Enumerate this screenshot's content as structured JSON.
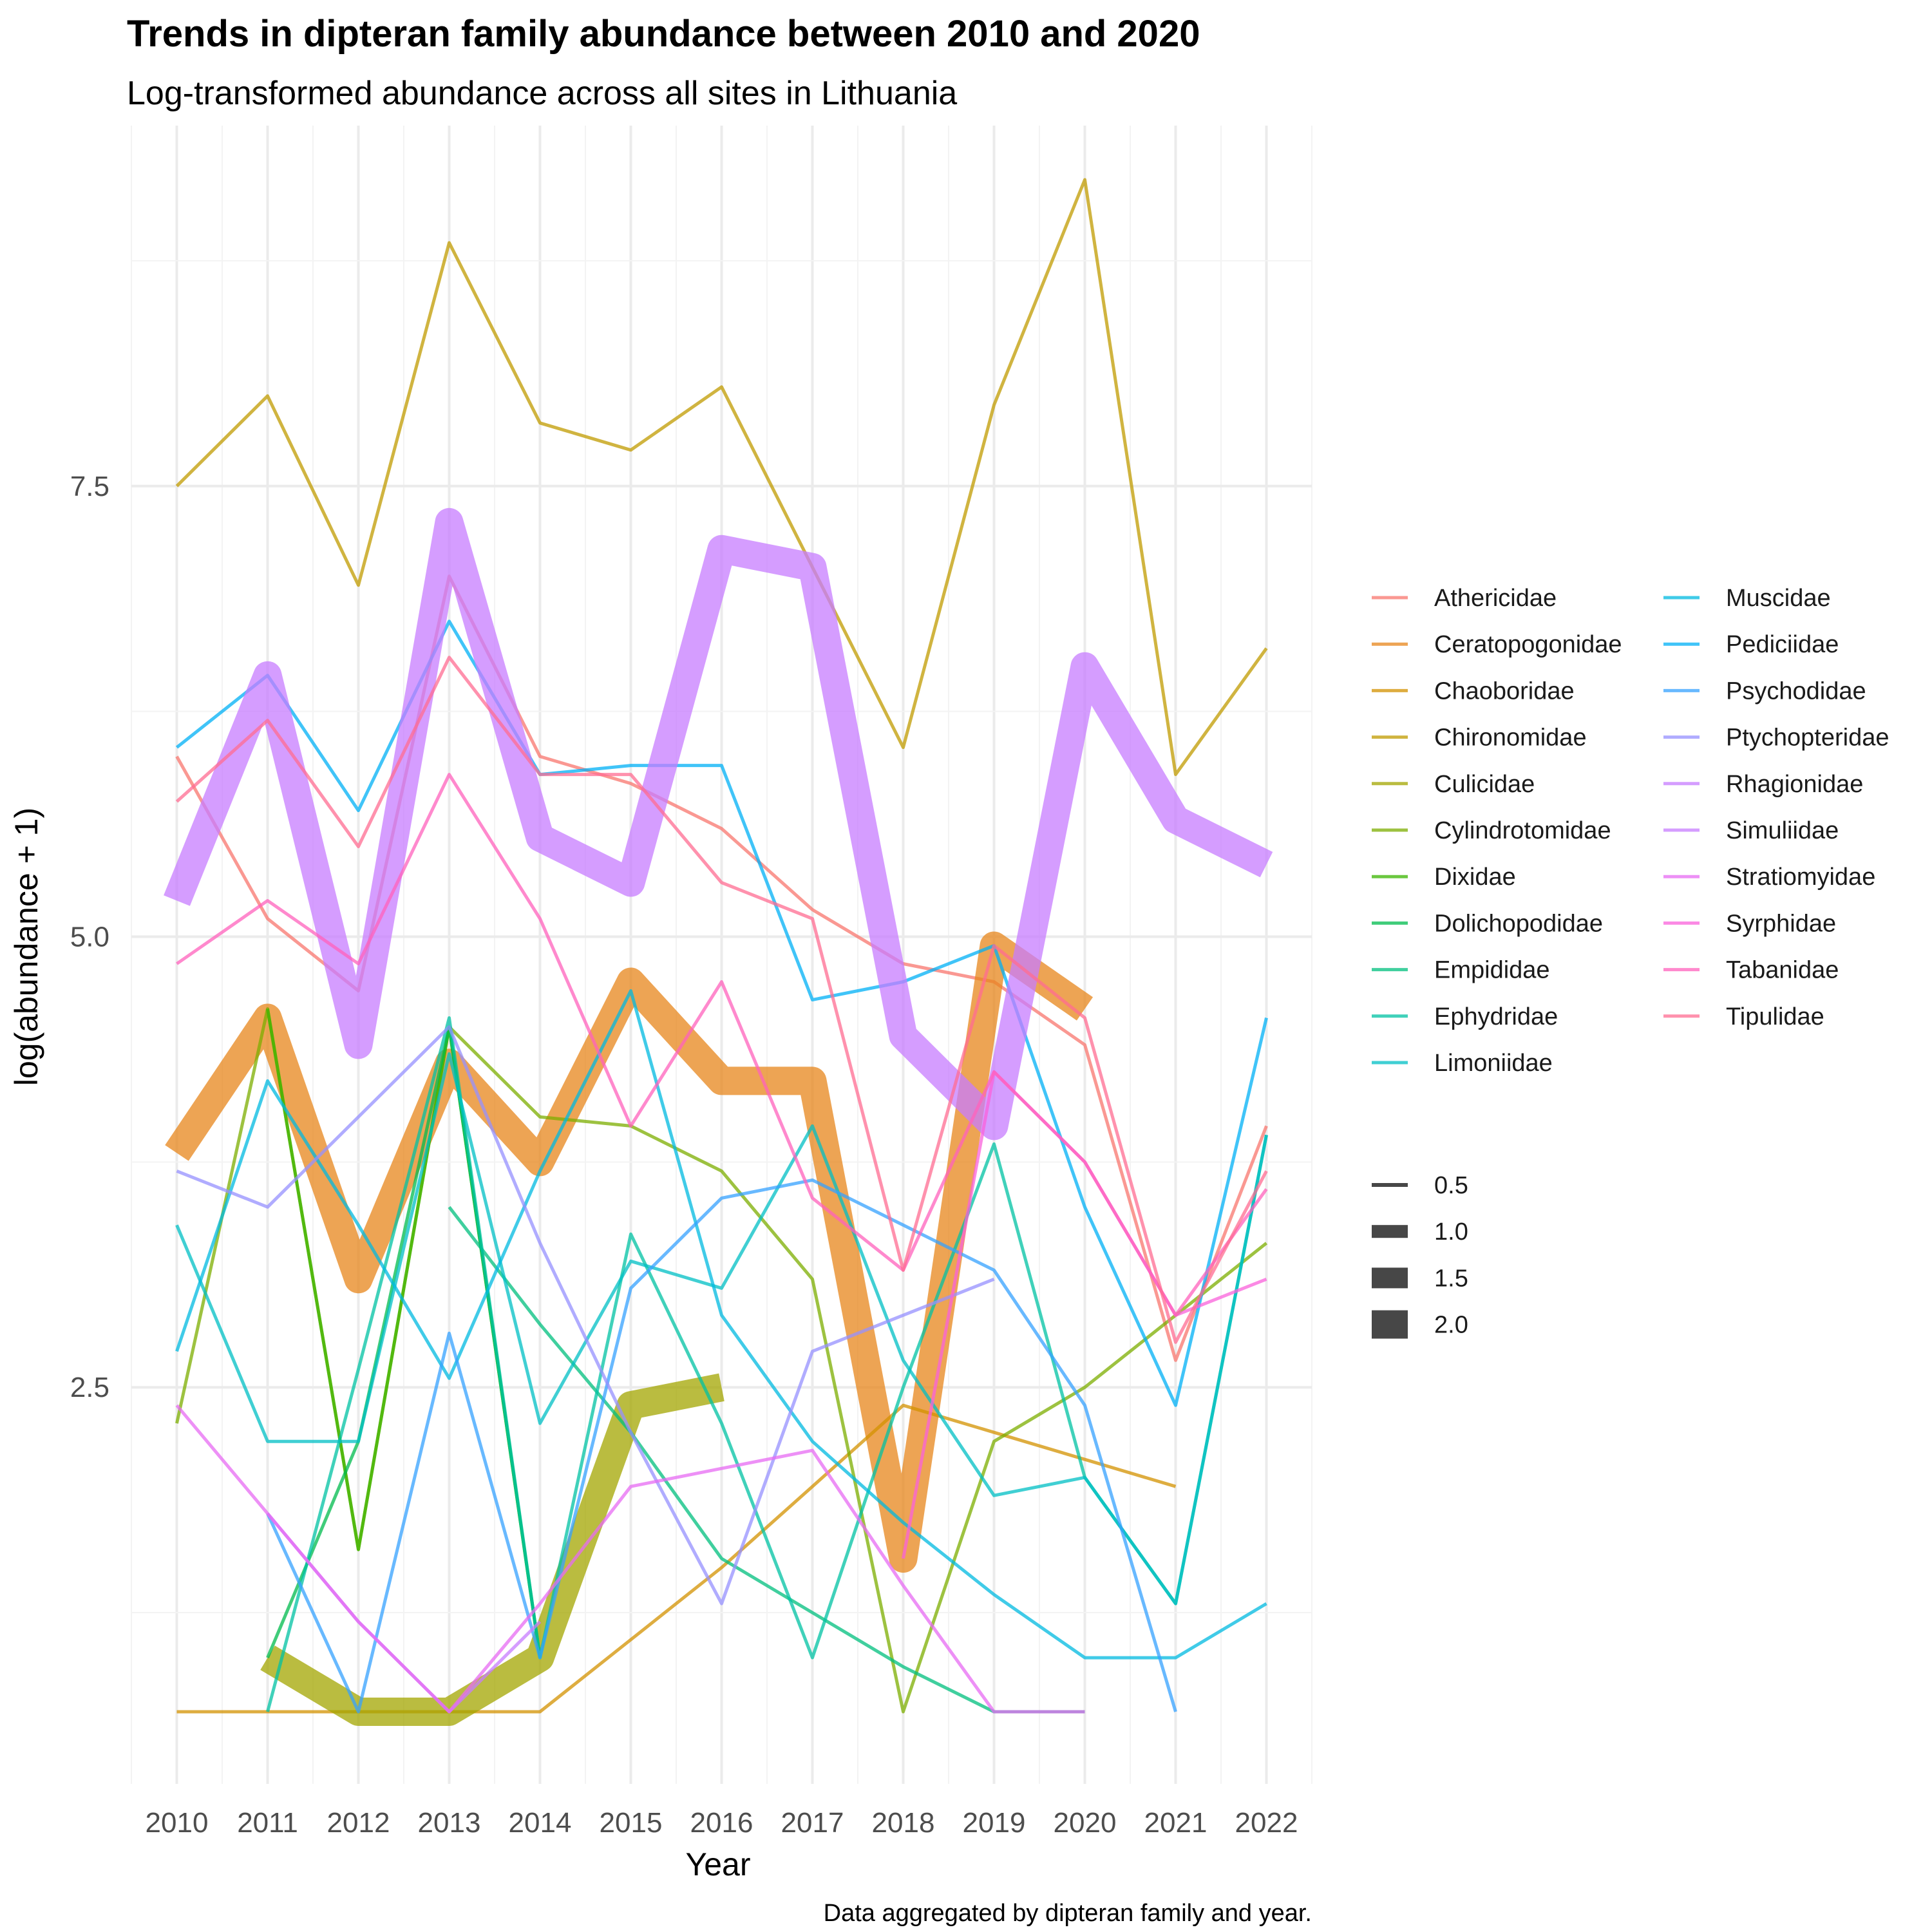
{
  "chart_data": {
    "type": "line",
    "title": "Trends in dipteran family abundance between 2010 and 2020",
    "subtitle": "Log-transformed abundance across all sites in Lithuania",
    "xlabel": "Year",
    "ylabel": "log(abundance + 1)",
    "caption": "Data aggregated by dipteran family and year.",
    "x_ticks": [
      "2010",
      "2011",
      "2012",
      "2013",
      "2014",
      "2015",
      "2016",
      "2017",
      "2018",
      "2019",
      "2020",
      "2021",
      "2022"
    ],
    "y_ticks": [
      "2.5",
      "5.0",
      "7.5"
    ],
    "xlim": [
      2009.5,
      2022.5
    ],
    "ylim": [
      0.3,
      9.5
    ],
    "grid": true,
    "legend_position": "right",
    "size_legend": [
      "0.5",
      "1.0",
      "1.5",
      "2.0"
    ],
    "series": [
      {
        "name": "Athericidae",
        "color": "#F8766D",
        "size": 0.5,
        "x": [
          2010,
          2011,
          2012,
          2013,
          2014,
          2015,
          2016,
          2017,
          2018,
          2019,
          2020,
          2021,
          2022
        ],
        "y": [
          6.0,
          5.1,
          4.7,
          7.0,
          6.0,
          5.85,
          5.6,
          5.15,
          4.85,
          4.75,
          4.4,
          2.65,
          3.95
        ]
      },
      {
        "name": "Ceratopogonidae",
        "color": "#E7861B",
        "size": 2.0,
        "x": [
          2010,
          2011,
          2012,
          2013,
          2014,
          2015,
          2016,
          2017,
          2018,
          2019,
          2020
        ],
        "y": [
          3.8,
          4.55,
          3.1,
          4.3,
          3.75,
          4.75,
          4.2,
          4.2,
          1.55,
          4.95,
          4.6
        ]
      },
      {
        "name": "Chaoboridae",
        "color": "#D39200",
        "size": 0.5,
        "x": [
          2010,
          2011,
          2012,
          2013,
          2014,
          2015,
          2016,
          2017,
          2018,
          2019,
          2020,
          2021
        ],
        "y": [
          0.7,
          0.7,
          0.7,
          0.7,
          0.7,
          1.1,
          1.5,
          1.95,
          2.4,
          2.25,
          2.1,
          1.95
        ]
      },
      {
        "name": "Chironomidae",
        "color": "#C09B00",
        "size": 0.5,
        "x": [
          2010,
          2011,
          2012,
          2013,
          2014,
          2015,
          2016,
          2017,
          2018,
          2019,
          2020,
          2021,
          2022
        ],
        "y": [
          7.5,
          8.0,
          6.95,
          8.85,
          7.85,
          7.7,
          8.05,
          7.05,
          6.05,
          7.95,
          9.2,
          5.9,
          6.6
        ]
      },
      {
        "name": "Culicidae",
        "color": "#A3A500",
        "size": 2.0,
        "x": [
          2011,
          2012,
          2013,
          2014,
          2015,
          2016
        ],
        "y": [
          1.0,
          0.7,
          0.7,
          1.0,
          2.4,
          2.5
        ]
      },
      {
        "name": "Cylindrotomidae",
        "color": "#7CAE00",
        "size": 0.5,
        "x": [
          2010,
          2011,
          2012,
          2013,
          2014,
          2015,
          2016,
          2017,
          2018,
          2019,
          2020,
          2021,
          2022
        ],
        "y": [
          2.3,
          4.6,
          1.6,
          4.5,
          4.0,
          3.95,
          3.7,
          3.1,
          0.7,
          2.2,
          2.5,
          2.9,
          3.3
        ]
      },
      {
        "name": "Dixidae",
        "color": "#39B600",
        "size": 0.5,
        "x": [
          2011,
          2012,
          2013,
          2014
        ],
        "y": [
          4.6,
          1.6,
          4.5,
          1.0
        ]
      },
      {
        "name": "Dolichopodidae",
        "color": "#00BB4E",
        "size": 0.5,
        "x": [
          2011,
          2012,
          2013,
          2014
        ],
        "y": [
          1.0,
          2.2,
          4.5,
          1.0
        ]
      },
      {
        "name": "Empididae",
        "color": "#00BF7D",
        "size": 0.5,
        "x": [
          2013,
          2014,
          2015,
          2016,
          2017,
          2018,
          2019,
          2020
        ],
        "y": [
          3.5,
          2.85,
          2.25,
          1.55,
          1.25,
          0.95,
          0.7,
          0.7
        ]
      },
      {
        "name": "Ephydridae",
        "color": "#00C1A3",
        "size": 0.5,
        "x": [
          2011,
          2012,
          2013,
          2014,
          2015,
          2016,
          2017,
          2018,
          2019,
          2020,
          2021,
          2022
        ],
        "y": [
          0.7,
          2.6,
          4.55,
          1.0,
          3.35,
          2.3,
          1.0,
          2.5,
          3.85,
          2.0,
          1.3,
          3.9
        ]
      },
      {
        "name": "Limoniidae",
        "color": "#00BFC4",
        "size": 0.5,
        "x": [
          2010,
          2011,
          2012,
          2013,
          2014,
          2015,
          2016,
          2017,
          2018,
          2019,
          2020,
          2021,
          2022
        ],
        "y": [
          3.4,
          2.2,
          2.2,
          4.35,
          2.3,
          3.2,
          3.05,
          3.95,
          2.65,
          1.9,
          2.0,
          1.3,
          3.9
        ]
      },
      {
        "name": "Muscidae",
        "color": "#00BAE0",
        "size": 0.5,
        "x": [
          2010,
          2011,
          2012,
          2013,
          2014,
          2015,
          2016,
          2017,
          2018,
          2019,
          2020,
          2021,
          2022
        ],
        "y": [
          2.7,
          4.2,
          3.4,
          2.55,
          3.7,
          4.7,
          2.9,
          2.2,
          1.75,
          1.35,
          1.0,
          1.0,
          1.3
        ]
      },
      {
        "name": "Pediciidae",
        "color": "#00B0F6",
        "size": 0.5,
        "x": [
          2010,
          2011,
          2012,
          2013,
          2014,
          2015,
          2016,
          2017,
          2018,
          2019,
          2020,
          2021,
          2022
        ],
        "y": [
          6.05,
          6.45,
          5.7,
          6.75,
          5.9,
          5.95,
          5.95,
          4.65,
          4.75,
          4.95,
          3.5,
          2.4,
          4.55
        ]
      },
      {
        "name": "Psychodidae",
        "color": "#35A2FF",
        "size": 0.5,
        "x": [
          2011,
          2012,
          2013,
          2014,
          2015,
          2016,
          2017,
          2018,
          2019,
          2020,
          2021
        ],
        "y": [
          1.8,
          0.7,
          2.8,
          1.0,
          3.05,
          3.55,
          3.65,
          3.4,
          3.15,
          2.4,
          0.7
        ]
      },
      {
        "name": "Ptychopteridae",
        "color": "#9590FF",
        "size": 0.5,
        "x": [
          2010,
          2011,
          2012,
          2013,
          2014,
          2015,
          2016,
          2017,
          2018,
          2019
        ],
        "y": [
          3.7,
          3.5,
          4.0,
          4.5,
          3.3,
          2.25,
          1.3,
          2.7,
          2.9,
          3.1
        ]
      },
      {
        "name": "Rhagionidae",
        "color": "#C77CFF",
        "size": 0.5,
        "x": [
          2011,
          2012,
          2013,
          2014
        ],
        "y": [
          1.8,
          1.2,
          0.7,
          1.2
        ]
      },
      {
        "name": "Simuliidae",
        "color": "#C77CFF",
        "size": 2.0,
        "x": [
          2010,
          2011,
          2012,
          2013,
          2014,
          2015,
          2016,
          2017,
          2018,
          2019,
          2020,
          2021,
          2022
        ],
        "y": [
          5.2,
          6.45,
          4.4,
          7.3,
          5.55,
          5.3,
          7.15,
          7.05,
          4.45,
          3.95,
          6.5,
          5.65,
          5.4
        ]
      },
      {
        "name": "Stratiomyidae",
        "color": "#E76BF3",
        "size": 0.5,
        "x": [
          2010,
          2011,
          2012,
          2013,
          2014,
          2015,
          2016,
          2017,
          2018,
          2019,
          2020
        ],
        "y": [
          2.4,
          1.8,
          1.2,
          0.7,
          1.3,
          1.95,
          2.05,
          2.15,
          1.4,
          0.7,
          0.7
        ]
      },
      {
        "name": "Syrphidae",
        "color": "#FA62DB",
        "size": 0.5,
        "x": [
          2018,
          2019,
          2020,
          2021,
          2022
        ],
        "y": [
          1.55,
          4.25,
          3.75,
          2.9,
          3.1
        ]
      },
      {
        "name": "Tabanidae",
        "color": "#FF62BC",
        "size": 0.5,
        "x": [
          2010,
          2011,
          2012,
          2013,
          2014,
          2015,
          2016,
          2017,
          2018,
          2019,
          2020,
          2021,
          2022
        ],
        "y": [
          4.85,
          5.2,
          4.85,
          5.9,
          5.1,
          3.95,
          4.75,
          3.55,
          3.15,
          4.25,
          3.75,
          2.9,
          3.6
        ]
      },
      {
        "name": "Tipulidae",
        "color": "#FF6C91",
        "size": 0.5,
        "x": [
          2010,
          2011,
          2012,
          2013,
          2014,
          2015,
          2016,
          2017,
          2018,
          2019,
          2020,
          2021,
          2022
        ],
        "y": [
          5.75,
          6.2,
          5.5,
          6.55,
          5.9,
          5.9,
          5.3,
          5.1,
          3.15,
          4.95,
          4.55,
          2.75,
          3.7
        ]
      }
    ]
  }
}
